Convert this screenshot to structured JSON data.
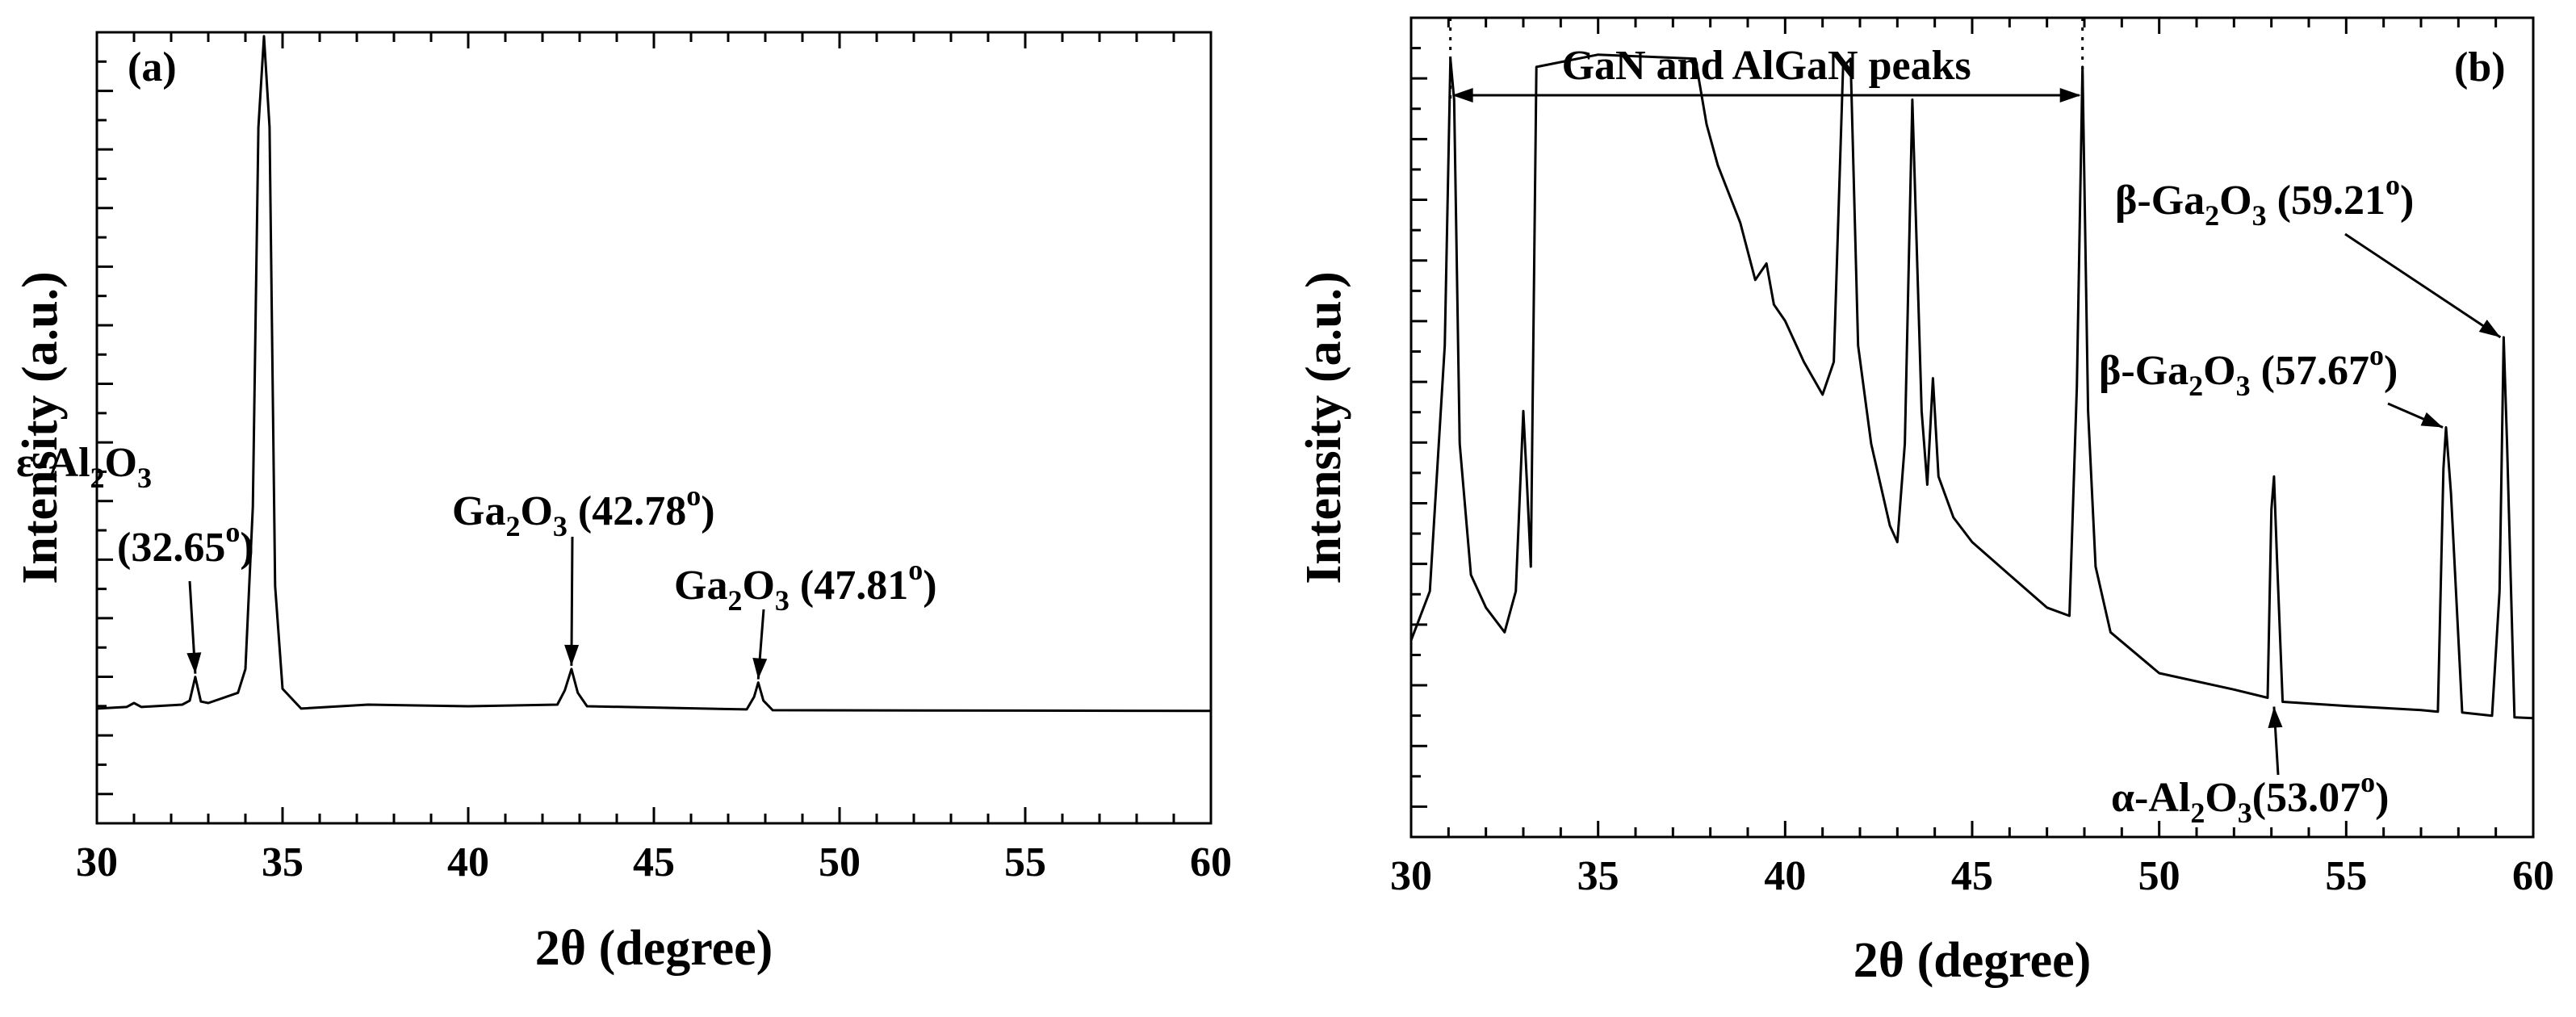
{
  "chart_data": [
    {
      "type": "line",
      "panel_label": "(a)",
      "xlabel": "2θ (degree)",
      "ylabel": "Intensity (a.u.)",
      "xlim": [
        30,
        60
      ],
      "ylim": [
        0,
        100
      ],
      "xticks": [
        30,
        35,
        40,
        45,
        50,
        55,
        60
      ],
      "x": [
        30,
        30.8,
        31,
        31.2,
        32.3,
        32.5,
        32.65,
        32.8,
        33,
        33.8,
        34.0,
        34.2,
        34.35,
        34.5,
        34.65,
        34.8,
        35.0,
        35.5,
        37.3,
        40,
        42.4,
        42.6,
        42.78,
        42.95,
        43.2,
        47.5,
        47.7,
        47.81,
        47.95,
        48.2,
        60
      ],
      "y": [
        14.5,
        14.7,
        15.2,
        14.7,
        15.0,
        15.5,
        18.5,
        15.4,
        15.2,
        16.5,
        19.5,
        40,
        88,
        99.5,
        88,
        30,
        17,
        14.5,
        15.0,
        14.8,
        15.0,
        16.8,
        19.5,
        16.5,
        14.8,
        14.4,
        16.0,
        17.8,
        15.5,
        14.3,
        14.2
      ],
      "annotations": [
        {
          "base": "ε-Al",
          "sub1": "2",
          "mid": "O",
          "sub2": "3",
          "pre": "",
          "post": "",
          "line2": "(32.65",
          "sup": "o",
          "line2_end": ")",
          "x": 32.65,
          "y": 18.5
        },
        {
          "pre": "",
          "base": "Ga",
          "sub1": "2",
          "mid": "O",
          "sub2": "3",
          "post": " (42.78",
          "sup": "o",
          "end": ")",
          "x": 42.78,
          "y": 19.5
        },
        {
          "pre": "",
          "base": "Ga",
          "sub1": "2",
          "mid": "O",
          "sub2": "3",
          "post": " (47.81",
          "sup": "o",
          "end": ")",
          "x": 47.81,
          "y": 17.8
        }
      ]
    },
    {
      "type": "line",
      "panel_label": "(b)",
      "xlabel": "2θ (degree)",
      "ylabel": "Intensity (a.u.)",
      "xlim": [
        30,
        60
      ],
      "ylim": [
        0,
        100
      ],
      "xticks": [
        30,
        35,
        40,
        45,
        50,
        55,
        60
      ],
      "x": [
        30,
        30.5,
        30.9,
        31.05,
        31.15,
        31.3,
        31.6,
        32.0,
        32.5,
        32.8,
        33.0,
        33.1,
        33.2,
        33.35,
        35,
        37.6,
        37.9,
        38.2,
        38.8,
        39.2,
        39.5,
        39.7,
        40.0,
        40.5,
        41.0,
        41.3,
        41.55,
        41.75,
        41.95,
        42.3,
        42.8,
        43.0,
        43.2,
        43.4,
        43.65,
        43.8,
        43.95,
        44.1,
        44.5,
        45,
        46,
        47,
        47.6,
        47.8,
        47.95,
        48.1,
        48.3,
        48.7,
        50,
        52,
        52.9,
        53.0,
        53.07,
        53.15,
        53.3,
        55,
        57,
        57.45,
        57.6,
        57.67,
        57.8,
        58.1,
        58.9,
        59.1,
        59.21,
        59.3,
        59.5,
        60
      ],
      "y": [
        24,
        30,
        60,
        95,
        90,
        48,
        32,
        28,
        25,
        30,
        52,
        43,
        33,
        94,
        95.5,
        95,
        87,
        82,
        75,
        68,
        70,
        65,
        63,
        58,
        54,
        58,
        94,
        95,
        60,
        48,
        38,
        36,
        48,
        90,
        52,
        43,
        56,
        44,
        39,
        36,
        32,
        28,
        27,
        55,
        94,
        52,
        33,
        25,
        20,
        18,
        17,
        40,
        44,
        34,
        16.5,
        16,
        15.5,
        15.3,
        45,
        50,
        42,
        15.2,
        14.8,
        30,
        61,
        48,
        14.6,
        14.5
      ],
      "bracket_label": "GaN and AlGaN peaks",
      "bracket_x": [
        31.05,
        47.95
      ],
      "annotations": [
        {
          "pre": "β-",
          "base": "Ga",
          "sub1": "2",
          "mid": "O",
          "sub2": "3",
          "post": " (59.21",
          "sup": "o",
          "end": ")",
          "x": 59.21,
          "y": 61
        },
        {
          "pre": "β-",
          "base": "Ga",
          "sub1": "2",
          "mid": "O",
          "sub2": "3",
          "post": " (57.67",
          "sup": "o",
          "end": ")",
          "x": 57.67,
          "y": 50
        },
        {
          "pre": "α-",
          "base": "Al",
          "sub1": "2",
          "mid": "O",
          "sub2": "3",
          "post": "(53.07",
          "sup": "o",
          "end": ")",
          "x": 53.07,
          "y": 16.5
        }
      ]
    }
  ]
}
